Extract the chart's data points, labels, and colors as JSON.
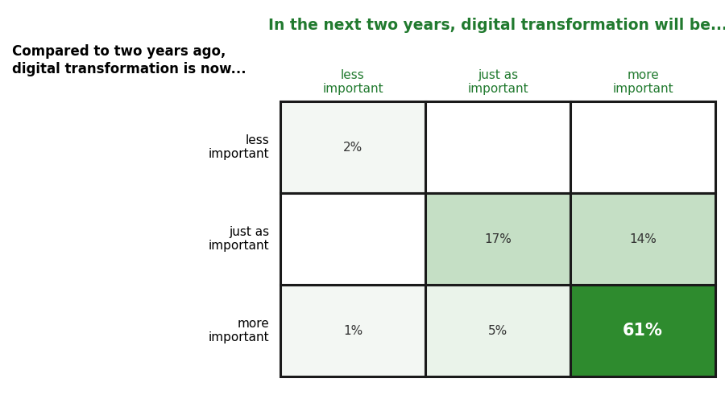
{
  "title": "In the next two years, digital transformation will be...",
  "title_color": "#217a2f",
  "title_fontsize": 13.5,
  "y_label_line1": "Compared to two years ago,",
  "y_label_line2": "digital transformation is now...",
  "col_headers": [
    "less\nimportant",
    "just as\nimportant",
    "more\nimportant"
  ],
  "row_headers": [
    "less\nimportant",
    "just as\nimportant",
    "more\nimportant"
  ],
  "col_header_color": "#217a2f",
  "row_header_color": "#000000",
  "values": [
    [
      "2%",
      "",
      ""
    ],
    [
      "",
      "17%",
      "14%"
    ],
    [
      "1%",
      "5%",
      "61%"
    ]
  ],
  "cell_colors": [
    [
      "#f3f7f3",
      "#ffffff",
      "#ffffff"
    ],
    [
      "#ffffff",
      "#c5dfc5",
      "#c5dfc5"
    ],
    [
      "#f3f7f3",
      "#eaf3ea",
      "#2e8b2e"
    ]
  ],
  "text_colors": [
    [
      "#333333",
      "#333333",
      "#333333"
    ],
    [
      "#333333",
      "#333333",
      "#333333"
    ],
    [
      "#333333",
      "#333333",
      "#ffffff"
    ]
  ],
  "bold_cells": [
    [
      false,
      false,
      false
    ],
    [
      false,
      false,
      false
    ],
    [
      false,
      false,
      true
    ]
  ],
  "background_color": "#ffffff",
  "cell_fontsize": 11,
  "col_header_fontsize": 11,
  "row_header_fontsize": 11,
  "y_label_fontsize": 12
}
